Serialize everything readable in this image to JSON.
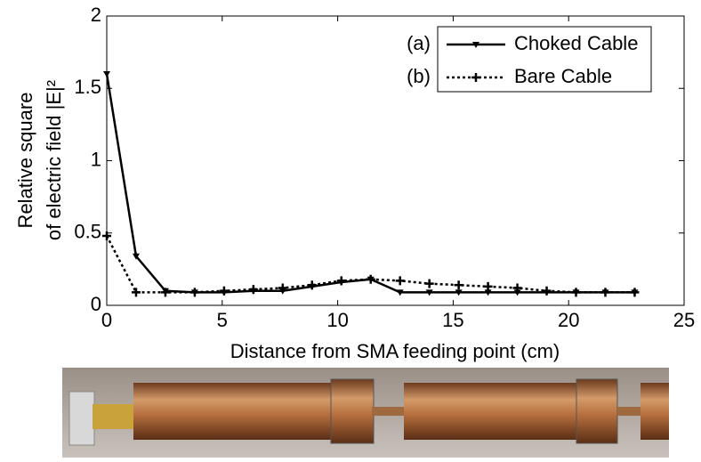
{
  "chart_data": {
    "type": "line",
    "xlabel": "Distance from SMA feeding point (cm)",
    "ylabel": [
      "Relative square",
      "of electric field |E|²"
    ],
    "xlim": [
      0,
      25
    ],
    "xticks": [
      0,
      5,
      10,
      15,
      20,
      25
    ],
    "ylim": [
      0,
      2
    ],
    "yticks": [
      0,
      0.5,
      1,
      1.5,
      2
    ],
    "legend": "upper right",
    "legend_prefixes": [
      "(a)",
      "(b)"
    ],
    "x": [
      0,
      1.27,
      2.54,
      3.81,
      5.08,
      6.35,
      7.62,
      8.89,
      10.16,
      11.43,
      12.7,
      13.97,
      15.24,
      16.51,
      17.78,
      19.05,
      20.32,
      21.59,
      22.86
    ],
    "series": [
      {
        "name": "Choked Cable",
        "color": "#000000",
        "dash": "solid",
        "marker": "triangle-down",
        "values": [
          1.6,
          0.34,
          0.1,
          0.09,
          0.09,
          0.1,
          0.1,
          0.13,
          0.16,
          0.18,
          0.09,
          0.09,
          0.09,
          0.09,
          0.09,
          0.09,
          0.09,
          0.09,
          0.09
        ]
      },
      {
        "name": "Bare Cable",
        "color": "#000000",
        "dash": "dotted",
        "marker": "plus",
        "values": [
          0.48,
          0.09,
          0.09,
          0.09,
          0.1,
          0.11,
          0.12,
          0.14,
          0.17,
          0.18,
          0.17,
          0.15,
          0.14,
          0.13,
          0.12,
          0.1,
          0.09,
          0.09,
          0.09
        ]
      }
    ]
  }
}
